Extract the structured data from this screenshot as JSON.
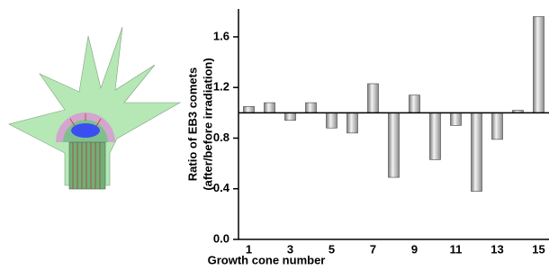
{
  "chart_data": {
    "type": "bar",
    "y_label": [
      "Ratio of EB3 comets",
      "(after/before irradiation)"
    ],
    "x_label": "Growth cone number",
    "categories": [
      "1",
      null,
      "3",
      null,
      "5",
      null,
      "7",
      null,
      "9",
      null,
      "11",
      null,
      "13",
      null,
      "15"
    ],
    "values": [
      1.05,
      1.08,
      0.94,
      1.08,
      0.88,
      0.84,
      1.23,
      0.49,
      1.14,
      0.63,
      0.9,
      0.38,
      0.79,
      1.02,
      1.76
    ],
    "baseline": 1,
    "color": "#b0b0b0",
    "ylim": [
      0,
      1.82
    ],
    "yticks": [
      {
        "value": 0,
        "label": "0.0"
      },
      0.4,
      0.8,
      1.2,
      1.6
    ]
  }
}
